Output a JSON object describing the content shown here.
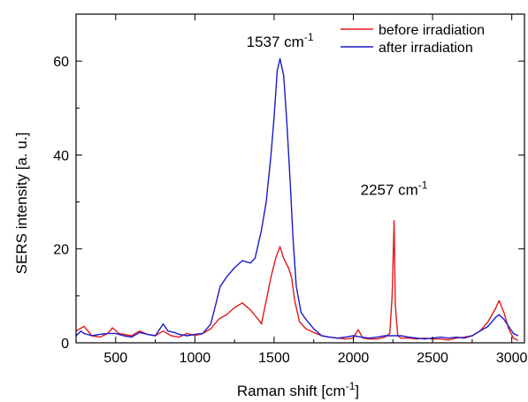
{
  "chart_data": {
    "type": "line",
    "xlabel_main": "Raman shift [cm",
    "xlabel_sup": "-1",
    "xlabel_tail": "]",
    "ylabel": "SERS intensity [a. u.]",
    "xlim": [
      250,
      3080
    ],
    "ylim": [
      0,
      70
    ],
    "xticks": [
      500,
      1000,
      1500,
      2000,
      2500,
      3000
    ],
    "xtick_labels": [
      "500",
      "1000",
      "1500",
      "2000",
      "2500",
      "3000"
    ],
    "yticks": [
      0,
      20,
      40,
      60
    ],
    "ytick_labels": [
      "0",
      "20",
      "40",
      "60"
    ],
    "legend_position": "top-right",
    "annotations": [
      {
        "main": "1537 cm",
        "sup": "-1",
        "x": 1537,
        "y": 63
      },
      {
        "main": "2257 cm",
        "sup": "-1",
        "x": 2257,
        "y": 31.5
      }
    ],
    "series": [
      {
        "name": "before irradiation",
        "color": "#e31a1c",
        "points": [
          [
            250,
            2.5
          ],
          [
            300,
            3.5
          ],
          [
            350,
            1.5
          ],
          [
            400,
            1.2
          ],
          [
            450,
            2
          ],
          [
            480,
            3.2
          ],
          [
            520,
            2
          ],
          [
            600,
            1.5
          ],
          [
            650,
            2.5
          ],
          [
            700,
            1.8
          ],
          [
            750,
            1.5
          ],
          [
            800,
            2.5
          ],
          [
            850,
            1.5
          ],
          [
            900,
            1.2
          ],
          [
            950,
            2
          ],
          [
            1000,
            1.5
          ],
          [
            1050,
            2
          ],
          [
            1100,
            3
          ],
          [
            1150,
            5
          ],
          [
            1200,
            6
          ],
          [
            1250,
            7.5
          ],
          [
            1300,
            8.5
          ],
          [
            1350,
            7
          ],
          [
            1400,
            5
          ],
          [
            1420,
            4
          ],
          [
            1450,
            9
          ],
          [
            1480,
            14
          ],
          [
            1510,
            18
          ],
          [
            1537,
            20.5
          ],
          [
            1560,
            18
          ],
          [
            1590,
            16
          ],
          [
            1610,
            14
          ],
          [
            1630,
            9
          ],
          [
            1660,
            4.5
          ],
          [
            1700,
            3
          ],
          [
            1750,
            2.2
          ],
          [
            1800,
            1.5
          ],
          [
            1850,
            1.2
          ],
          [
            1900,
            1
          ],
          [
            1950,
            0.8
          ],
          [
            2000,
            1
          ],
          [
            2030,
            2.8
          ],
          [
            2060,
            1
          ],
          [
            2100,
            0.8
          ],
          [
            2150,
            0.8
          ],
          [
            2200,
            1.2
          ],
          [
            2230,
            2
          ],
          [
            2245,
            10
          ],
          [
            2257,
            26
          ],
          [
            2265,
            8
          ],
          [
            2280,
            1.5
          ],
          [
            2300,
            1
          ],
          [
            2350,
            1
          ],
          [
            2400,
            0.8
          ],
          [
            2450,
            1
          ],
          [
            2500,
            0.8
          ],
          [
            2550,
            0.8
          ],
          [
            2600,
            0.6
          ],
          [
            2650,
            1
          ],
          [
            2700,
            1.2
          ],
          [
            2750,
            1.5
          ],
          [
            2800,
            2.5
          ],
          [
            2850,
            4.5
          ],
          [
            2900,
            7.5
          ],
          [
            2920,
            9
          ],
          [
            2950,
            6.5
          ],
          [
            2980,
            3
          ],
          [
            3010,
            1
          ],
          [
            3040,
            0.5
          ]
        ]
      },
      {
        "name": "after irradiation",
        "color": "#1a1acc",
        "points": [
          [
            250,
            1.5
          ],
          [
            280,
            2.5
          ],
          [
            300,
            2
          ],
          [
            350,
            1.5
          ],
          [
            400,
            1.8
          ],
          [
            450,
            2
          ],
          [
            500,
            2
          ],
          [
            550,
            1.5
          ],
          [
            600,
            1.2
          ],
          [
            650,
            2.2
          ],
          [
            700,
            1.8
          ],
          [
            750,
            1.5
          ],
          [
            800,
            4
          ],
          [
            830,
            2.5
          ],
          [
            870,
            2.2
          ],
          [
            900,
            1.8
          ],
          [
            950,
            1.5
          ],
          [
            1000,
            1.8
          ],
          [
            1050,
            2
          ],
          [
            1100,
            4
          ],
          [
            1130,
            8
          ],
          [
            1160,
            12
          ],
          [
            1200,
            14
          ],
          [
            1250,
            16
          ],
          [
            1300,
            17.5
          ],
          [
            1350,
            17
          ],
          [
            1380,
            18
          ],
          [
            1420,
            24
          ],
          [
            1450,
            30
          ],
          [
            1480,
            40
          ],
          [
            1500,
            48
          ],
          [
            1520,
            58
          ],
          [
            1537,
            60.5
          ],
          [
            1560,
            57
          ],
          [
            1580,
            47
          ],
          [
            1600,
            35
          ],
          [
            1620,
            22
          ],
          [
            1640,
            12
          ],
          [
            1670,
            6.5
          ],
          [
            1700,
            5
          ],
          [
            1750,
            3
          ],
          [
            1800,
            1.5
          ],
          [
            1850,
            1.2
          ],
          [
            1900,
            1
          ],
          [
            1950,
            1.2
          ],
          [
            2000,
            1.5
          ],
          [
            2050,
            1.2
          ],
          [
            2100,
            1
          ],
          [
            2150,
            1.2
          ],
          [
            2200,
            1.5
          ],
          [
            2250,
            1.5
          ],
          [
            2300,
            1.5
          ],
          [
            2350,
            1.2
          ],
          [
            2400,
            1
          ],
          [
            2450,
            0.8
          ],
          [
            2500,
            1
          ],
          [
            2550,
            1.2
          ],
          [
            2600,
            1
          ],
          [
            2650,
            1.2
          ],
          [
            2700,
            1
          ],
          [
            2750,
            1.5
          ],
          [
            2800,
            2.5
          ],
          [
            2850,
            3.5
          ],
          [
            2900,
            5.5
          ],
          [
            2920,
            6
          ],
          [
            2950,
            5
          ],
          [
            2980,
            3.5
          ],
          [
            3010,
            2
          ],
          [
            3040,
            1.5
          ]
        ]
      }
    ]
  }
}
